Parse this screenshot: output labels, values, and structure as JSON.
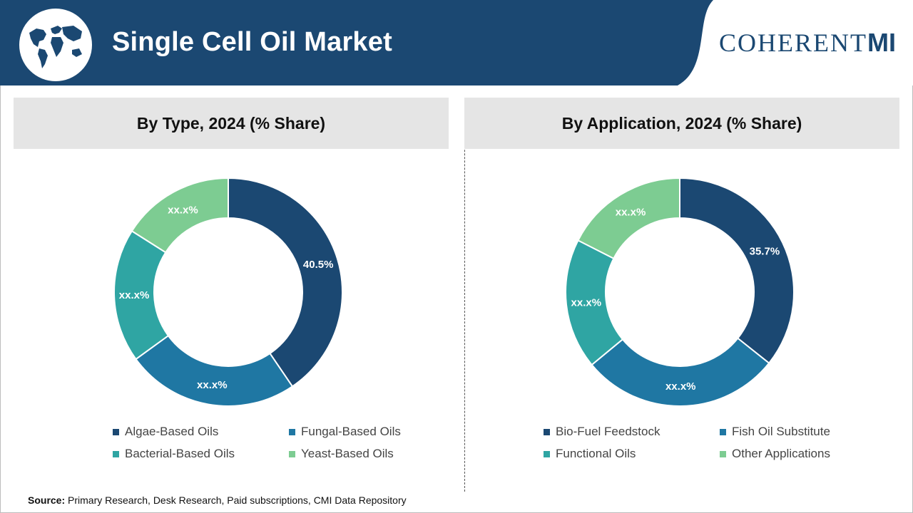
{
  "header": {
    "title": "Single Cell Oil Market",
    "brand": {
      "text_main": "COHERENT",
      "text_accent": "MI"
    },
    "background_color": "#1b4872"
  },
  "chart_data": [
    {
      "type": "pie",
      "title": "By Type, 2024 (% Share)",
      "categories": [
        "Algae-Based Oils",
        "Fungal-Based Oils",
        "Bacterial-Based Oils",
        "Yeast-Based Oils"
      ],
      "values": [
        40.5,
        24.5,
        19.0,
        16.0
      ],
      "labels": [
        "40.5%",
        "xx.x%",
        "xx.x%",
        "xx.x%"
      ],
      "colors": [
        "#1b4872",
        "#1f77a3",
        "#2fa5a3",
        "#7dcc92"
      ],
      "legend": "bottom"
    },
    {
      "type": "pie",
      "title": "By Application, 2024 (% Share)",
      "categories": [
        "Bio-Fuel Feedstock",
        "Fish Oil Substitute",
        "Functional Oils",
        "Other Applications"
      ],
      "values": [
        35.7,
        28.3,
        18.5,
        17.5
      ],
      "labels": [
        "35.7%",
        "xx.x%",
        "xx.x%",
        "xx.x%"
      ],
      "colors": [
        "#1b4872",
        "#1f77a3",
        "#2fa5a3",
        "#7dcc92"
      ],
      "legend": "bottom"
    }
  ],
  "footer": {
    "source_label": "Source:",
    "source_text": "Primary Research, Desk Research, Paid subscriptions, CMI Data Repository"
  }
}
